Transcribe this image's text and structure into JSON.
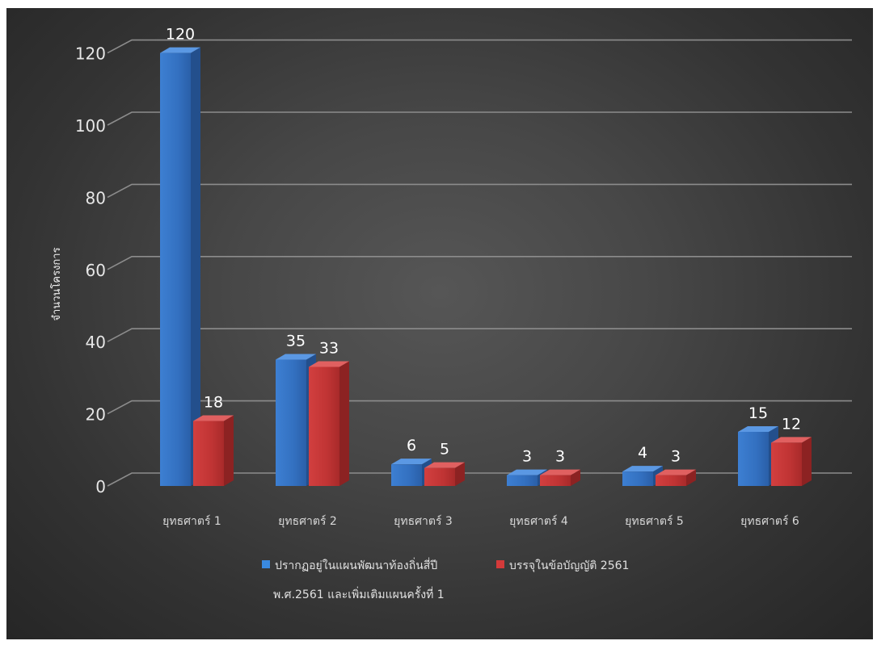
{
  "chart_data": {
    "type": "bar",
    "title": "",
    "xlabel": "",
    "ylabel": "จำนวนโครงการ",
    "ylim": [
      0,
      120
    ],
    "yticks": [
      0,
      20,
      40,
      60,
      80,
      100,
      120
    ],
    "grid": true,
    "legend_position": "bottom",
    "categories": [
      "ยุทธศาตร์ 1",
      "ยุทธศาตร์ 2",
      "ยุทธศาตร์ 3",
      "ยุทธศาตร์ 4",
      "ยุทธศาตร์ 5",
      "ยุทธศาตร์ 6"
    ],
    "series": [
      {
        "name": "ปรากฏอยู่ในแผนพัฒนาท้องถิ่นสี่ปี พ.ศ.2561 และเพิ่มเติมแผนครั้งที่ 1",
        "name_lines": [
          "ปรากฏอยู่ในแผนพัฒนาท้องถิ่นสี่ปี",
          "พ.ศ.2561 และเพิ่มเติมแผนครั้งที่ 1"
        ],
        "values": [
          120,
          35,
          6,
          3,
          4,
          15
        ],
        "color": "#3a78c9"
      },
      {
        "name": "บรรจุในข้อบัญญัติ 2561",
        "name_lines": [
          "บรรจุในข้อบัญญัติ 2561"
        ],
        "values": [
          18,
          33,
          5,
          3,
          3,
          12
        ],
        "color": "#c93a3a"
      }
    ]
  }
}
